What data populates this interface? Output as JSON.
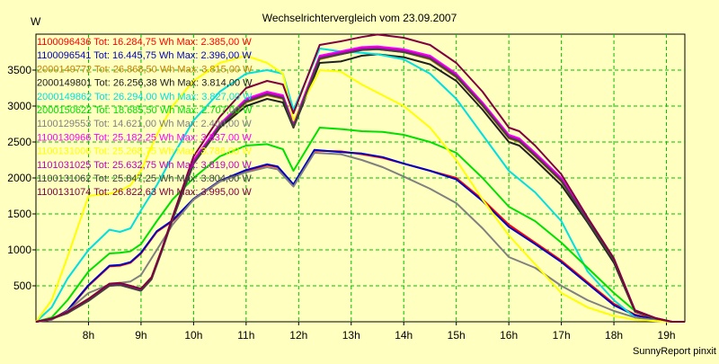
{
  "chart_data": {
    "type": "line",
    "title": "Wechselrichtervergleich vom 23.09.2007",
    "ylabel": "W",
    "xlabel": "",
    "footer": "SunnyReport pinxit",
    "ylim": [
      0,
      4000
    ],
    "xlim": [
      7.0,
      19.35
    ],
    "yticks": [
      500,
      1000,
      1500,
      2000,
      2500,
      3000,
      3500
    ],
    "xticks": [
      {
        "v": 8,
        "label": "8h"
      },
      {
        "v": 9,
        "label": "9h"
      },
      {
        "v": 10,
        "label": "10h"
      },
      {
        "v": 11,
        "label": "11h"
      },
      {
        "v": 12,
        "label": "12h"
      },
      {
        "v": 13,
        "label": "13h"
      },
      {
        "v": 14,
        "label": "14h"
      },
      {
        "v": 15,
        "label": "15h"
      },
      {
        "v": 16,
        "label": "16h"
      },
      {
        "v": 17,
        "label": "17h"
      },
      {
        "v": 18,
        "label": "18h"
      },
      {
        "v": 19,
        "label": "19h"
      }
    ],
    "grid": true,
    "legend_position": "top-left",
    "series": [
      {
        "name": "1100096436 Tot: 16.284,75 Wh Max: 2.385,00 W",
        "color": "#ff0000",
        "x": [
          7,
          7.3,
          7.6,
          8,
          8.4,
          8.6,
          8.8,
          9,
          9.3,
          9.6,
          10,
          10.5,
          11,
          11.4,
          11.6,
          11.9,
          12.3,
          12.8,
          13.2,
          13.6,
          14,
          14.5,
          15,
          15.5,
          16,
          16.5,
          17,
          17.5,
          18,
          18.4,
          18.8,
          19.1,
          19.35
        ],
        "values": [
          0,
          30,
          150,
          500,
          770,
          780,
          820,
          950,
          1250,
          1400,
          1700,
          1950,
          2100,
          2180,
          2150,
          1900,
          2380,
          2370,
          2330,
          2280,
          2200,
          2100,
          2000,
          1700,
          1350,
          1100,
          850,
          550,
          250,
          100,
          30,
          0,
          0
        ]
      },
      {
        "name": "1100096541 Tot: 16.445,75 Wh Max: 2.396,00 W",
        "color": "#0000c8",
        "x": [
          7,
          7.3,
          7.6,
          8,
          8.4,
          8.6,
          8.8,
          9,
          9.3,
          9.6,
          10,
          10.5,
          11,
          11.4,
          11.6,
          11.9,
          12.3,
          12.8,
          13.2,
          13.6,
          14,
          14.5,
          15,
          15.5,
          16,
          16.5,
          17,
          17.5,
          18,
          18.4,
          18.8,
          19.1,
          19.35
        ],
        "values": [
          0,
          30,
          160,
          510,
          780,
          790,
          830,
          960,
          1260,
          1410,
          1710,
          1960,
          2110,
          2190,
          2160,
          1910,
          2390,
          2360,
          2340,
          2290,
          2200,
          2100,
          1980,
          1680,
          1320,
          1080,
          830,
          530,
          230,
          90,
          25,
          0,
          0
        ]
      },
      {
        "name": "2000149772 Tot: 26.868,50 Wh Max: 3.815,00 W",
        "color": "#cc8000",
        "x": [
          7,
          7.3,
          7.6,
          8,
          8.4,
          8.6,
          8.8,
          9,
          9.2,
          9.4,
          9.6,
          10,
          10.5,
          11,
          11.4,
          11.7,
          11.9,
          12.4,
          12.8,
          13.2,
          13.5,
          14,
          14.5,
          15,
          15.5,
          16,
          16.2,
          16.5,
          17,
          17.5,
          18,
          18.4,
          18.8,
          19.1,
          19.35
        ],
        "values": [
          0,
          40,
          120,
          300,
          500,
          520,
          500,
          450,
          600,
          1000,
          1450,
          2200,
          2700,
          3050,
          3150,
          3100,
          2700,
          3650,
          3720,
          3780,
          3790,
          3750,
          3650,
          3400,
          3000,
          2550,
          2500,
          2300,
          1950,
          1400,
          850,
          150,
          50,
          0,
          0
        ]
      },
      {
        "name": "2000149801 Tot: 26.256,38 Wh Max: 3.814,00 W",
        "color": "#202020",
        "x": [
          7,
          7.3,
          7.6,
          8,
          8.4,
          8.6,
          8.8,
          9,
          9.2,
          9.4,
          9.6,
          10,
          10.5,
          11,
          11.4,
          11.7,
          11.9,
          12.4,
          12.8,
          13.2,
          13.5,
          14,
          14.5,
          15,
          15.5,
          16,
          16.2,
          16.5,
          17,
          17.5,
          18,
          18.4,
          18.8,
          19.1,
          19.35
        ],
        "values": [
          0,
          40,
          130,
          300,
          510,
          520,
          480,
          440,
          600,
          1000,
          1430,
          2200,
          2700,
          3000,
          3100,
          3050,
          2700,
          3600,
          3620,
          3700,
          3720,
          3680,
          3580,
          3350,
          2950,
          2500,
          2450,
          2250,
          1900,
          1380,
          820,
          140,
          40,
          0,
          0
        ]
      },
      {
        "name": "2000149862 Tot: 26.294,00 Wh Max: 3.827,00 W",
        "color": "#00e0e0",
        "x": [
          7,
          7.3,
          7.6,
          8,
          8.4,
          8.6,
          8.8,
          9,
          9.3,
          9.6,
          10,
          10.5,
          11,
          11.4,
          11.7,
          11.9,
          12.4,
          12.8,
          13.2,
          13.5,
          14,
          14.5,
          15,
          15.5,
          16,
          16.5,
          17,
          17.5,
          18,
          18.4,
          18.8,
          19.1,
          19.35
        ],
        "values": [
          0,
          200,
          600,
          1000,
          1280,
          1250,
          1300,
          1550,
          1900,
          2300,
          2800,
          3200,
          3450,
          3500,
          3450,
          2950,
          3800,
          3760,
          3740,
          3720,
          3650,
          3450,
          3100,
          2600,
          2100,
          1800,
          1400,
          700,
          300,
          60,
          20,
          0,
          0
        ]
      },
      {
        "name": "2000150622 Tot: 18.685,50 Wh Max: 2.707,00 W",
        "color": "#00e000",
        "x": [
          7,
          7.3,
          7.6,
          8,
          8.4,
          8.6,
          8.8,
          9,
          9.3,
          9.6,
          10,
          10.5,
          11,
          11.4,
          11.7,
          11.9,
          12.4,
          12.8,
          13.2,
          13.6,
          14,
          14.5,
          15,
          15.5,
          16,
          16.5,
          17,
          17.5,
          18,
          18.4,
          18.8,
          19.1,
          19.35
        ],
        "values": [
          0,
          60,
          300,
          700,
          950,
          960,
          980,
          1080,
          1400,
          1700,
          2000,
          2300,
          2450,
          2470,
          2400,
          2100,
          2700,
          2680,
          2650,
          2640,
          2600,
          2500,
          2350,
          2000,
          1600,
          1400,
          1100,
          750,
          400,
          150,
          40,
          0,
          0
        ]
      },
      {
        "name": "1100129553 Tot: 14.621,00 Wh Max: 2.400,00 W",
        "color": "#808080",
        "x": [
          7,
          7.3,
          7.6,
          8,
          8.4,
          8.6,
          8.8,
          9,
          9.3,
          9.6,
          10,
          10.5,
          11,
          11.4,
          11.6,
          11.9,
          12.3,
          12.8,
          13.2,
          13.6,
          14,
          14.5,
          15,
          15.5,
          16,
          16.5,
          17,
          17.5,
          18,
          18.4,
          18.8,
          19.1,
          19.35
        ],
        "values": [
          0,
          30,
          150,
          400,
          520,
          540,
          560,
          650,
          1000,
          1350,
          1700,
          1950,
          2080,
          2150,
          2120,
          1880,
          2350,
          2330,
          2250,
          2150,
          2020,
          1850,
          1650,
          1300,
          900,
          750,
          500,
          300,
          150,
          60,
          20,
          0,
          0
        ]
      },
      {
        "name": "1100130966 Tot: 25.182,25 Wh Max: 3.837,00 W",
        "color": "#ff00ff",
        "x": [
          7,
          7.3,
          7.6,
          8,
          8.4,
          8.6,
          8.8,
          9,
          9.2,
          9.4,
          9.6,
          10,
          10.5,
          11,
          11.4,
          11.7,
          11.9,
          12.4,
          12.8,
          13.2,
          13.5,
          14,
          14.5,
          15,
          15.5,
          16,
          16.2,
          16.5,
          17,
          17.5,
          18,
          18.4,
          18.8,
          19.1,
          19.35
        ],
        "values": [
          0,
          40,
          130,
          310,
          520,
          530,
          490,
          450,
          610,
          1010,
          1450,
          2250,
          2750,
          3100,
          3200,
          3150,
          2750,
          3700,
          3760,
          3820,
          3830,
          3790,
          3700,
          3450,
          3050,
          2600,
          2550,
          2350,
          2000,
          1420,
          870,
          160,
          50,
          0,
          0
        ]
      },
      {
        "name": "1100131006 Tot: 25.268,75 Wh Max: 3.786,00 W",
        "color": "#ffff00",
        "x": [
          7,
          7.3,
          7.6,
          8,
          8.4,
          8.6,
          8.8,
          9,
          9.3,
          9.6,
          10,
          10.5,
          11,
          11.4,
          11.7,
          11.9,
          12.4,
          12.8,
          13.2,
          13.6,
          14,
          14.5,
          15,
          15.5,
          16,
          16.5,
          17,
          17.5,
          18,
          18.4,
          18.8,
          19.1,
          19.35
        ],
        "values": [
          0,
          300,
          900,
          1750,
          1780,
          1820,
          1900,
          2100,
          2600,
          3000,
          3350,
          3600,
          3700,
          3600,
          3450,
          2800,
          3500,
          3480,
          3300,
          3150,
          3000,
          2700,
          2250,
          1700,
          1200,
          800,
          400,
          200,
          80,
          30,
          10,
          0,
          0
        ]
      },
      {
        "name": "1101031025 Tot: 25.632,75 Wh Max: 3.819,00 W",
        "color": "#c000c0",
        "x": [
          7,
          7.3,
          7.6,
          8,
          8.4,
          8.6,
          8.8,
          9,
          9.2,
          9.4,
          9.6,
          10,
          10.5,
          11,
          11.4,
          11.7,
          11.9,
          12.4,
          12.8,
          13.2,
          13.5,
          14,
          14.5,
          15,
          15.5,
          16,
          16.2,
          16.5,
          17,
          17.5,
          18,
          18.4,
          18.8,
          19.1,
          19.35
        ],
        "values": [
          0,
          40,
          130,
          300,
          510,
          520,
          480,
          440,
          600,
          1000,
          1440,
          2230,
          2730,
          3080,
          3180,
          3130,
          2730,
          3680,
          3740,
          3800,
          3810,
          3770,
          3680,
          3430,
          3030,
          2580,
          2530,
          2330,
          1980,
          1410,
          860,
          150,
          45,
          0,
          0
        ]
      },
      {
        "name": "1100131062 Tot: 25.847,25 Wh Max: 3.804,00 W",
        "color": "#404040",
        "x": [
          7,
          7.3,
          7.6,
          8,
          8.4,
          8.6,
          8.8,
          9,
          9.2,
          9.4,
          9.6,
          10,
          10.5,
          11,
          11.4,
          11.7,
          11.9,
          12.4,
          12.8,
          13.2,
          13.5,
          14,
          14.5,
          15,
          15.5,
          16,
          16.2,
          16.5,
          17,
          17.5,
          18,
          18.4,
          18.8,
          19.1,
          19.35
        ],
        "values": [
          0,
          40,
          120,
          290,
          500,
          510,
          470,
          430,
          590,
          990,
          1420,
          2200,
          2720,
          3060,
          3160,
          3110,
          2710,
          3660,
          3720,
          3780,
          3790,
          3750,
          3660,
          3410,
          3010,
          2560,
          2510,
          2310,
          1960,
          1400,
          850,
          145,
          45,
          0,
          0
        ]
      },
      {
        "name": "1100131074 Tot: 26.822,63 Wh Max: 3.995,00 W",
        "color": "#800040",
        "x": [
          7,
          7.3,
          7.6,
          8,
          8.4,
          8.6,
          8.8,
          9,
          9.2,
          9.4,
          9.6,
          10,
          10.5,
          11,
          11.4,
          11.7,
          11.9,
          12.4,
          12.8,
          13.2,
          13.5,
          14,
          14.5,
          15,
          15.5,
          16,
          16.2,
          16.5,
          17,
          17.5,
          18,
          18.4,
          18.8,
          19.1,
          19.35
        ],
        "values": [
          0,
          45,
          140,
          320,
          530,
          540,
          500,
          460,
          620,
          1020,
          1460,
          2300,
          2850,
          3250,
          3350,
          3300,
          2900,
          3850,
          3900,
          3960,
          3995,
          3950,
          3850,
          3600,
          3200,
          2700,
          2650,
          2450,
          2050,
          1450,
          880,
          160,
          50,
          0,
          0
        ]
      }
    ]
  }
}
